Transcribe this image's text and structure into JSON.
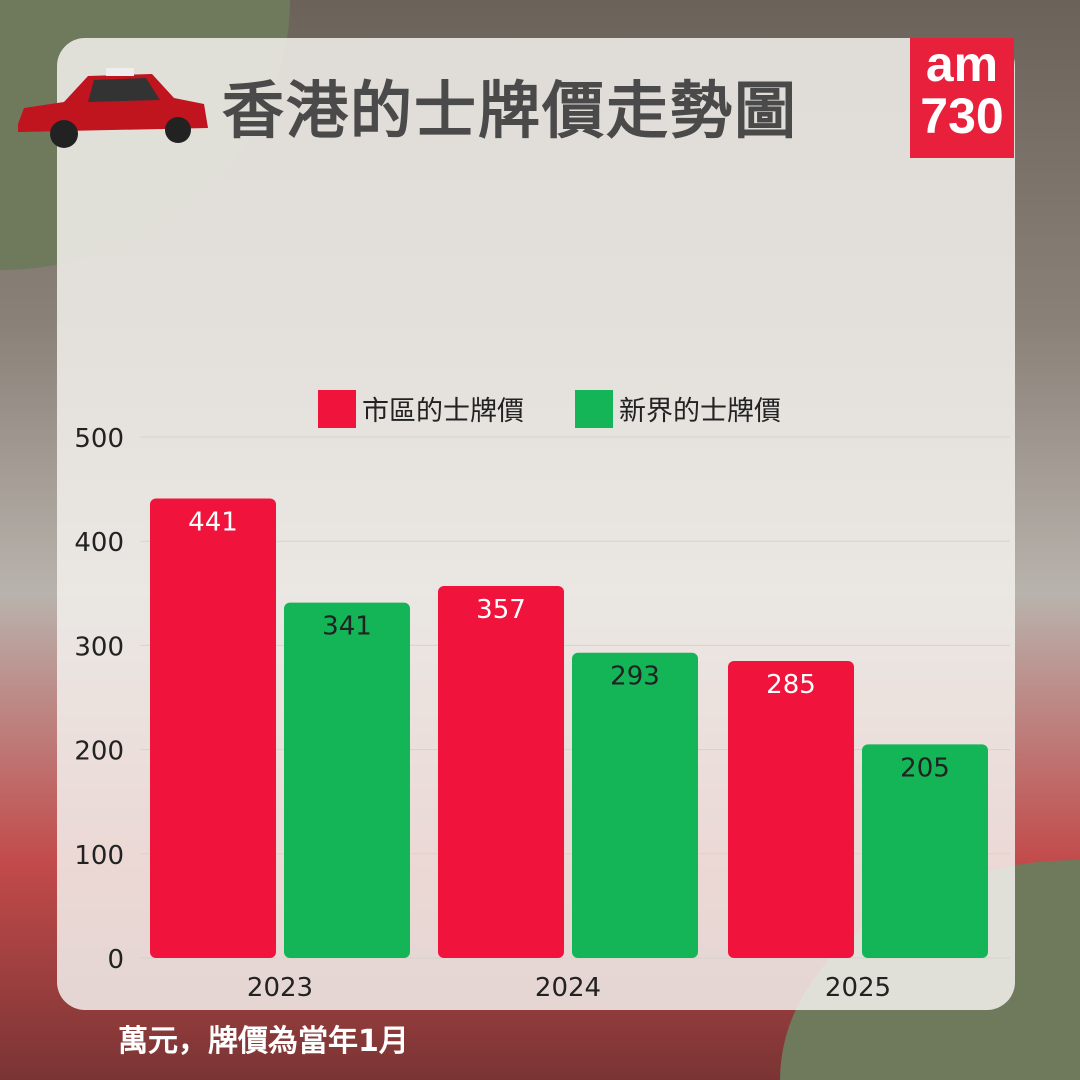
{
  "header": {
    "title": "香港的士牌價走勢圖",
    "logo_text": "am730"
  },
  "footer": {
    "note": "萬元，牌價為當年1月"
  },
  "chart_data": {
    "type": "bar",
    "categories": [
      "2023",
      "2024",
      "2025"
    ],
    "series": [
      {
        "name": "市區的士牌價",
        "color": "#f0143c",
        "values": [
          441,
          357,
          285
        ]
      },
      {
        "name": "新界的士牌價",
        "color": "#13b556",
        "values": [
          341,
          293,
          205
        ]
      }
    ],
    "yticks": [
      0,
      100,
      200,
      300,
      400,
      500
    ],
    "ylim": [
      0,
      500
    ],
    "grid": true,
    "legend": "top",
    "data_labels": true
  }
}
